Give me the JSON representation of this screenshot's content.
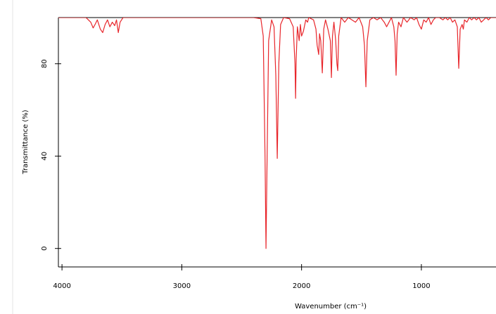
{
  "chart_data": {
    "type": "line",
    "xlabel": "Wavenumber (cm⁻¹)",
    "ylabel": "Transmittance (%)",
    "xlim": [
      4030,
      377
    ],
    "ylim": [
      -8,
      100
    ],
    "xticks": [
      4000,
      3000,
      2000,
      1000
    ],
    "yticks": [
      0,
      40,
      80
    ],
    "x": [
      4030,
      3800,
      3760,
      3740,
      3724,
      3705,
      3680,
      3660,
      3640,
      3620,
      3600,
      3580,
      3560,
      3545,
      3530,
      3515,
      3490,
      3000,
      2500,
      2400,
      2340,
      2320,
      2305,
      2297,
      2290,
      2275,
      2250,
      2230,
      2215,
      2203,
      2190,
      2175,
      2150,
      2100,
      2070,
      2055,
      2050,
      2045,
      2035,
      2020,
      2010,
      2000,
      1985,
      1965,
      1950,
      1940,
      1900,
      1880,
      1870,
      1857,
      1850,
      1840,
      1827,
      1815,
      1800,
      1780,
      1760,
      1751,
      1742,
      1730,
      1715,
      1705,
      1698,
      1690,
      1670,
      1640,
      1610,
      1580,
      1550,
      1520,
      1490,
      1475,
      1463,
      1452,
      1430,
      1400,
      1370,
      1340,
      1310,
      1290,
      1270,
      1250,
      1230,
      1220,
      1211,
      1202,
      1190,
      1170,
      1150,
      1120,
      1090,
      1060,
      1040,
      1020,
      1000,
      980,
      960,
      940,
      920,
      900,
      880,
      850,
      820,
      800,
      780,
      760,
      740,
      720,
      700,
      688,
      676,
      660,
      650,
      640,
      620,
      600,
      580,
      560,
      540,
      520,
      500,
      480,
      460,
      440,
      420,
      400,
      377
    ],
    "series": [
      {
        "name": "Transmittance",
        "color": "#e8262b",
        "values": [
          100,
          100,
          98,
          95.5,
          97,
          99,
          95,
          93.5,
          97,
          99,
          96,
          98,
          96.5,
          99,
          93.5,
          98,
          100,
          100,
          100,
          100,
          99.5,
          92,
          40,
          0,
          30,
          90,
          99,
          96,
          75,
          39,
          80,
          97,
          100,
          99.5,
          96,
          80,
          65,
          82,
          96,
          90,
          97,
          92,
          94,
          99,
          98,
          100,
          99,
          95,
          88,
          84,
          93,
          90,
          76,
          95,
          99,
          95,
          90,
          74,
          92,
          98,
          90,
          80,
          77,
          92,
          100,
          98,
          100,
          99,
          98,
          100,
          96,
          88,
          70,
          90,
          99,
          100,
          99,
          100,
          98,
          96,
          98,
          100,
          96,
          90,
          75,
          93,
          98,
          96,
          100,
          98,
          100,
          99,
          100,
          97,
          95,
          99,
          98,
          100,
          97,
          99,
          100,
          100,
          99,
          100,
          99,
          100,
          98,
          99,
          96,
          78,
          95,
          97,
          95,
          99,
          98,
          100,
          99,
          100,
          99,
          100,
          98,
          99,
          100,
          99,
          100,
          100,
          100
        ]
      }
    ]
  }
}
